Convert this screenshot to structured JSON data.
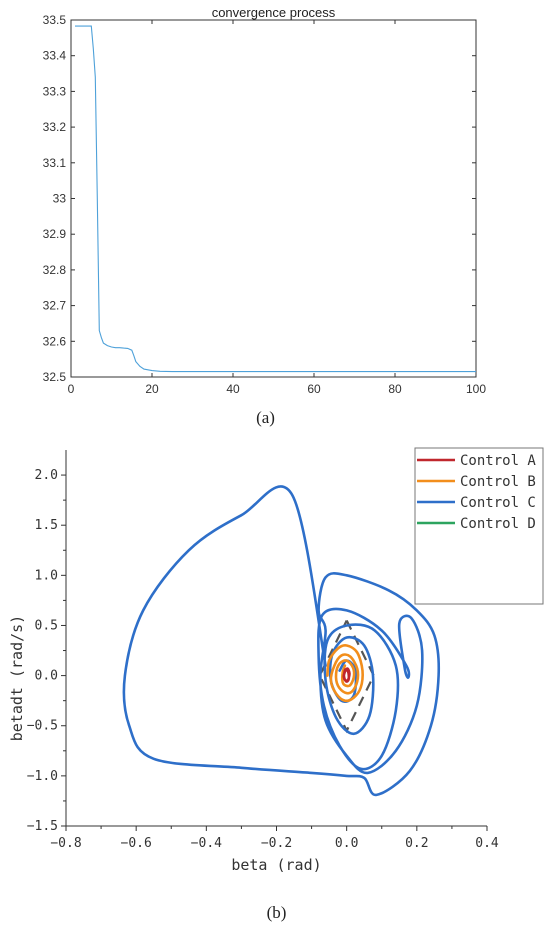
{
  "chart_data": [
    {
      "type": "line",
      "title": "convergence process",
      "panel_label": "(a)",
      "xlabel": "",
      "ylabel": "",
      "xlim": [
        0,
        100
      ],
      "ylim": [
        32.5,
        33.5
      ],
      "xticks": [
        0,
        20,
        40,
        60,
        80,
        100
      ],
      "yticks": [
        32.5,
        32.6,
        32.7,
        32.8,
        32.9,
        33,
        33.1,
        33.2,
        33.3,
        33.4,
        33.5
      ],
      "grid": false,
      "color": "#4ea1d9",
      "series": [
        {
          "x": [
            1,
            2,
            3,
            4,
            5,
            5.5,
            6,
            6.5,
            7,
            7.5,
            8,
            9,
            10,
            11,
            12,
            13,
            14,
            15,
            15.5,
            16,
            17,
            18,
            20,
            22,
            25,
            30,
            40,
            50,
            60,
            70,
            80,
            90,
            100
          ],
          "y": [
            33.483,
            33.483,
            33.483,
            33.483,
            33.483,
            33.42,
            33.34,
            33.0,
            32.63,
            32.61,
            32.595,
            32.588,
            32.584,
            32.582,
            32.582,
            32.581,
            32.58,
            32.575,
            32.56,
            32.543,
            32.53,
            32.522,
            32.518,
            32.516,
            32.515,
            32.515,
            32.515,
            32.515,
            32.515,
            32.515,
            32.515,
            32.515,
            32.515
          ]
        }
      ]
    },
    {
      "type": "line",
      "title": "",
      "panel_label": "(b)",
      "xlabel": "beta (rad)",
      "ylabel": "betadt (rad/s)",
      "xlim": [
        -0.8,
        0.4
      ],
      "ylim": [
        -1.5,
        2.25
      ],
      "xticks": [
        "−0.8",
        "−0.6",
        "−0.4",
        "−0.2",
        "0.0",
        "0.2",
        "0.4"
      ],
      "yticks": [
        "−1.5",
        "−1.0",
        "−0.5",
        "0.0",
        "0.5",
        "1.0",
        "1.5",
        "2.0"
      ],
      "legend_position": "top-right",
      "grid": false,
      "series": [
        {
          "name": "Control A",
          "color": "#c0272d",
          "points": [
            [
              -0.008,
              0.0
            ],
            [
              -0.004,
              0.06
            ],
            [
              0.004,
              0.04
            ],
            [
              0.006,
              -0.03
            ],
            [
              0.0,
              -0.06
            ],
            [
              -0.008,
              -0.02
            ],
            [
              -0.006,
              0.03
            ],
            [
              0.002,
              0.07
            ],
            [
              0.008,
              0.02
            ],
            [
              0.003,
              -0.05
            ],
            [
              -0.005,
              -0.04
            ],
            [
              -0.008,
              0.0
            ]
          ]
        },
        {
          "name": "Control B",
          "color": "#f28e1c",
          "points": [
            [
              -0.055,
              0.0
            ],
            [
              -0.05,
              0.15
            ],
            [
              -0.025,
              0.27
            ],
            [
              0.0,
              0.3
            ],
            [
              0.03,
              0.23
            ],
            [
              0.045,
              0.05
            ],
            [
              0.04,
              -0.12
            ],
            [
              0.02,
              -0.22
            ],
            [
              -0.005,
              -0.25
            ],
            [
              -0.03,
              -0.18
            ],
            [
              -0.045,
              -0.05
            ],
            [
              -0.035,
              0.1
            ],
            [
              -0.015,
              0.2
            ],
            [
              0.01,
              0.19
            ],
            [
              0.03,
              0.07
            ],
            [
              0.03,
              -0.06
            ],
            [
              0.015,
              -0.16
            ],
            [
              -0.005,
              -0.17
            ],
            [
              -0.025,
              -0.1
            ],
            [
              -0.03,
              0.02
            ],
            [
              -0.02,
              0.12
            ],
            [
              0.0,
              0.15
            ],
            [
              0.018,
              0.08
            ],
            [
              0.02,
              -0.02
            ],
            [
              0.008,
              -0.1
            ],
            [
              -0.01,
              -0.08
            ],
            [
              -0.012,
              0.02
            ],
            [
              -0.005,
              0.1
            ]
          ]
        },
        {
          "name": "Control C",
          "color": "#2e6fc9",
          "points": [
            [
              -0.06,
              0.1
            ],
            [
              -0.155,
              1.8
            ],
            [
              -0.3,
              1.6
            ],
            [
              -0.45,
              1.25
            ],
            [
              -0.58,
              0.65
            ],
            [
              -0.632,
              0.0
            ],
            [
              -0.62,
              -0.5
            ],
            [
              -0.55,
              -0.83
            ],
            [
              -0.3,
              -0.92
            ],
            [
              -0.1,
              -0.97
            ],
            [
              0.0,
              -1.0
            ],
            [
              0.05,
              -1.02
            ],
            [
              0.085,
              -1.19
            ],
            [
              0.18,
              -0.95
            ],
            [
              0.24,
              -0.5
            ],
            [
              0.262,
              0.0
            ],
            [
              0.25,
              0.4
            ],
            [
              0.2,
              0.65
            ],
            [
              0.12,
              0.85
            ],
            [
              0.0,
              1.0
            ],
            [
              -0.06,
              0.98
            ],
            [
              -0.08,
              0.65
            ],
            [
              -0.06,
              0.45
            ],
            [
              -0.075,
              0.0
            ],
            [
              -0.06,
              -0.45
            ],
            [
              0.0,
              -0.8
            ],
            [
              0.06,
              -0.97
            ],
            [
              0.14,
              -0.75
            ],
            [
              0.2,
              -0.3
            ],
            [
              0.215,
              0.25
            ],
            [
              0.185,
              0.57
            ],
            [
              0.15,
              0.52
            ],
            [
              0.165,
              0.08
            ],
            [
              0.175,
              -0.02
            ],
            [
              0.17,
              0.1
            ],
            [
              0.1,
              0.45
            ],
            [
              0.0,
              0.65
            ],
            [
              -0.07,
              0.6
            ],
            [
              -0.08,
              0.2
            ],
            [
              -0.065,
              -0.3
            ],
            [
              -0.02,
              -0.7
            ],
            [
              0.04,
              -0.93
            ],
            [
              0.1,
              -0.8
            ],
            [
              0.14,
              -0.35
            ],
            [
              0.14,
              0.1
            ],
            [
              0.08,
              0.45
            ],
            [
              0.0,
              0.5
            ],
            [
              -0.055,
              0.35
            ],
            [
              -0.06,
              -0.05
            ],
            [
              -0.03,
              -0.42
            ],
            [
              0.02,
              -0.58
            ],
            [
              0.065,
              -0.4
            ],
            [
              0.075,
              0.0
            ],
            [
              0.05,
              0.3
            ],
            [
              0.0,
              0.38
            ],
            [
              -0.04,
              0.22
            ],
            [
              -0.045,
              -0.05
            ],
            [
              -0.015,
              -0.25
            ],
            [
              0.02,
              -0.2
            ],
            [
              0.025,
              0.05
            ],
            [
              0.0,
              0.15
            ],
            [
              -0.02,
              0.05
            ]
          ]
        },
        {
          "name": "Control D",
          "color": "#2ca45f",
          "points": []
        },
        {
          "name": "",
          "color": "#555555",
          "dashed": true,
          "points": [
            [
              0.0,
              0.55
            ],
            [
              0.077,
              0.0
            ],
            [
              0.0,
              -0.55
            ],
            [
              -0.077,
              0.0
            ],
            [
              0.0,
              0.55
            ]
          ]
        }
      ]
    }
  ]
}
